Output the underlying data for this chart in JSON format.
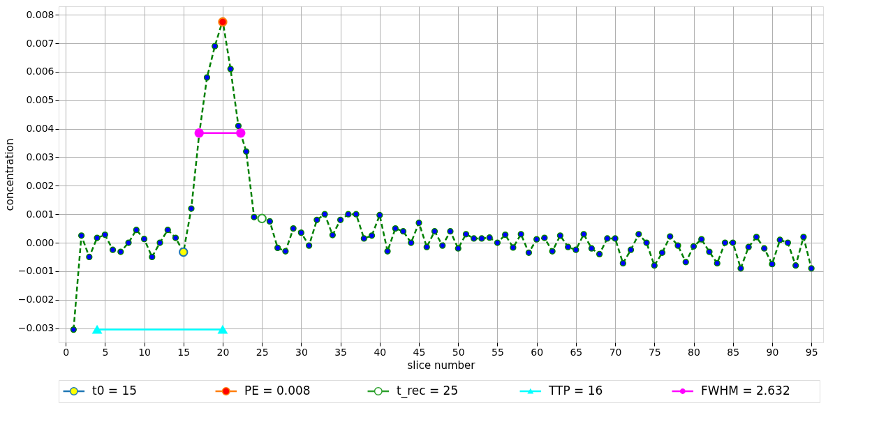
{
  "chart_data": {
    "type": "line",
    "xlabel": "slice number",
    "ylabel": "concentration",
    "xlim": [
      -0.9,
      96.5
    ],
    "ylim": [
      -0.0035,
      0.0083
    ],
    "xticks": [
      0,
      5,
      10,
      15,
      20,
      25,
      30,
      35,
      40,
      45,
      50,
      55,
      60,
      65,
      70,
      75,
      80,
      85,
      90,
      95
    ],
    "yticks": [
      -0.003,
      -0.002,
      -0.001,
      {
        "value": 0,
        "label": "0.000"
      },
      0.001,
      0.002,
      0.003,
      0.004,
      0.005,
      0.006,
      0.007,
      0.008
    ],
    "grid": true,
    "legend": "bottom",
    "series": [
      {
        "color": "#008000",
        "colors": [
          "#0000ff",
          "#0000ff",
          "#0000ff",
          "#0000ff",
          "#0000ff",
          "#0000ff",
          "#0000ff",
          "#0000ff",
          "#0000ff",
          "#0000ff",
          "#0000ff",
          "#0000ff",
          "#0000ff",
          "#0000ff",
          "#0000ff",
          "#0000ff",
          "#0000ff",
          "#0000ff",
          "#0000ff",
          "#0000ff",
          "#0000ff",
          "#0000ff",
          "#0000ff",
          "#0000ff",
          "#0000ff",
          "#0000ff",
          "#0000ff",
          "#0000ff",
          "#0000ff",
          "#0000ff",
          "#0000ff",
          "#0000ff",
          "#0000ff",
          "#0000ff",
          "#0000ff",
          "#0000ff",
          "#0000ff",
          "#0000ff",
          "#0000ff",
          "#0000ff",
          "#0000ff",
          "#0000ff",
          "#0000ff",
          "#0000ff",
          "#0000ff",
          "#0000ff",
          "#0000ff",
          "#0000ff",
          "#0000ff",
          "#0000ff",
          "#0000ff",
          "#0000ff",
          "#0000ff",
          "#0000ff",
          "#0000ff",
          "#0000ff",
          "#0000ff",
          "#0000ff",
          "#0000ff",
          "#0000ff",
          "#0000ff",
          "#0000ff",
          "#0000ff",
          "#0000ff",
          "#0000ff",
          "#0000ff",
          "#0000ff",
          "#0000ff",
          "#0000ff",
          "#0000ff",
          "#0000ff",
          "#0000ff",
          "#0000ff",
          "#0000ff",
          "#0000ff",
          "#0000ff",
          "#0000ff",
          "#0000ff",
          "#0000ff",
          "#0000ff",
          "#0000ff",
          "#0000ff",
          "#0000ff",
          "#0000ff",
          "#0000ff",
          "#0000ff",
          "#0000ff",
          "#0000ff",
          "#0000ff",
          "#0000ff",
          "#0000ff",
          "#0000ff",
          "#0000ff",
          "#0000ff",
          "#0000ff"
        ],
        "marker": "circle",
        "line_style": "dashed",
        "x": [
          1,
          2,
          3,
          4,
          5,
          6,
          7,
          8,
          9,
          10,
          11,
          12,
          13,
          14,
          15,
          16,
          17,
          18,
          19,
          20,
          21,
          22,
          23,
          24,
          25,
          26,
          27,
          28,
          29,
          30,
          31,
          32,
          33,
          34,
          35,
          36,
          37,
          38,
          39,
          40,
          41,
          42,
          43,
          44,
          45,
          46,
          47,
          48,
          49,
          50,
          51,
          52,
          53,
          54,
          55,
          56,
          57,
          58,
          59,
          60,
          61,
          62,
          63,
          64,
          65,
          66,
          67,
          68,
          69,
          70,
          71,
          72,
          73,
          74,
          75,
          76,
          77,
          78,
          79,
          80,
          81,
          82,
          83,
          84,
          85,
          86,
          87,
          88,
          89,
          90,
          91,
          92,
          93,
          94,
          95
        ],
        "values": [
          -0.00305,
          0.00025,
          -0.0005,
          0.00017,
          0.00028,
          -0.00025,
          -0.00032,
          0.0,
          0.00045,
          0.00013,
          -0.0005,
          0.0,
          0.00045,
          0.00017,
          -0.00033,
          0.0012,
          0.0038,
          0.0058,
          0.0069,
          0.0078,
          0.0061,
          0.0041,
          0.0032,
          0.0009,
          0.00085,
          0.00075,
          -0.00018,
          -0.0003,
          0.0005,
          0.00035,
          -0.0001,
          0.0008,
          0.001,
          0.00027,
          0.0008,
          0.001,
          0.001,
          0.00015,
          0.00025,
          0.00097,
          -0.0003,
          0.0005,
          0.0004,
          0.0,
          0.0007,
          -0.00015,
          0.0004,
          -0.0001,
          0.0004,
          -0.0002,
          0.0003,
          0.00015,
          0.00015,
          0.00018,
          0.0,
          0.00028,
          -0.00017,
          0.0003,
          -0.00035,
          0.00012,
          0.00017,
          -0.0003,
          0.00025,
          -0.00015,
          -0.00025,
          0.0003,
          -0.0002,
          -0.0004,
          0.00015,
          0.00015,
          -0.00072,
          -0.00025,
          0.0003,
          0.0,
          -0.0008,
          -0.00035,
          0.00022,
          -0.0001,
          -0.00068,
          -0.00013,
          0.00012,
          -0.00032,
          -0.00072,
          0.0,
          0.0,
          -0.0009,
          -0.00015,
          0.0002,
          -0.0002,
          -0.00075,
          0.0001,
          0.0,
          -0.0008,
          0.0002,
          -0.0009
        ]
      },
      {
        "type": "scatter",
        "name": "t0 = 15",
        "color": "#1f77b4",
        "colors": [
          "#ffff00"
        ],
        "marker": "circle",
        "x": [
          15
        ],
        "values": [
          -0.00033
        ]
      },
      {
        "type": "scatter",
        "name": "PE = 0.008",
        "color": "#ff7f0e",
        "colors": [
          "#ff0000"
        ],
        "marker": "circle",
        "x": [
          20
        ],
        "values": [
          0.00775
        ]
      },
      {
        "type": "scatter",
        "name": "t_rec = 25",
        "color": "#2ca02c",
        "colors": [
          "#ffffff"
        ],
        "marker": "circle",
        "x": [
          25
        ],
        "values": [
          0.00085
        ]
      },
      {
        "type": "line",
        "name": "TTP = 16",
        "color": "#00ffff",
        "marker": "triangle",
        "line_style": "solid",
        "x": [
          4,
          20
        ],
        "values": [
          -0.00305,
          -0.00305
        ]
      },
      {
        "type": "line",
        "name": "FWHM = 2.632",
        "color": "#ff00ff",
        "marker": "circle",
        "line_style": "solid",
        "x": [
          17,
          22.3
        ],
        "values": [
          0.00385,
          0.00385
        ]
      }
    ]
  }
}
